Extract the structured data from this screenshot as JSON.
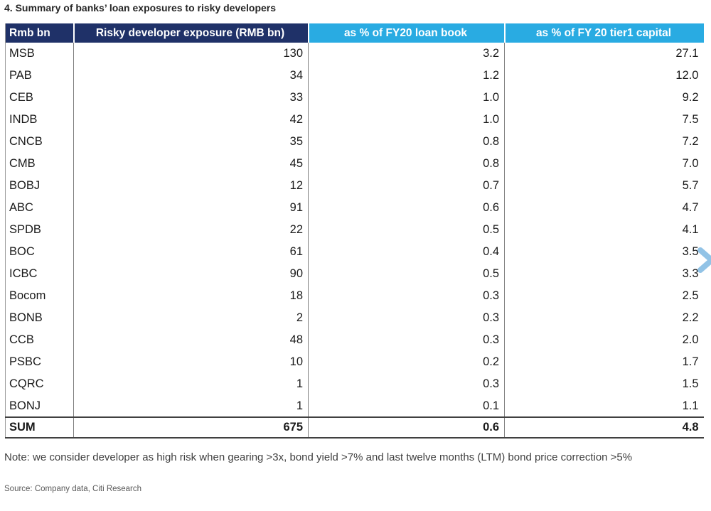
{
  "title": "4. Summary of banks’ loan exposures to risky developers",
  "chart_data": {
    "type": "table",
    "columns": [
      "Rmb bn",
      "Risky developer exposure (RMB bn)",
      "as % of FY20 loan book",
      "as % of FY 20 tier1 capital"
    ],
    "rows": [
      {
        "name": "MSB",
        "exposure": "130",
        "pct_loan_book": "3.2",
        "pct_tier1": "27.1"
      },
      {
        "name": "PAB",
        "exposure": "34",
        "pct_loan_book": "1.2",
        "pct_tier1": "12.0"
      },
      {
        "name": "CEB",
        "exposure": "33",
        "pct_loan_book": "1.0",
        "pct_tier1": "9.2"
      },
      {
        "name": "INDB",
        "exposure": "42",
        "pct_loan_book": "1.0",
        "pct_tier1": "7.5"
      },
      {
        "name": "CNCB",
        "exposure": "35",
        "pct_loan_book": "0.8",
        "pct_tier1": "7.2"
      },
      {
        "name": "CMB",
        "exposure": "45",
        "pct_loan_book": "0.8",
        "pct_tier1": "7.0"
      },
      {
        "name": "BOBJ",
        "exposure": "12",
        "pct_loan_book": "0.7",
        "pct_tier1": "5.7"
      },
      {
        "name": "ABC",
        "exposure": "91",
        "pct_loan_book": "0.6",
        "pct_tier1": "4.7"
      },
      {
        "name": "SPDB",
        "exposure": "22",
        "pct_loan_book": "0.5",
        "pct_tier1": "4.1"
      },
      {
        "name": "BOC",
        "exposure": "61",
        "pct_loan_book": "0.4",
        "pct_tier1": "3.5"
      },
      {
        "name": "ICBC",
        "exposure": "90",
        "pct_loan_book": "0.5",
        "pct_tier1": "3.3"
      },
      {
        "name": "Bocom",
        "exposure": "18",
        "pct_loan_book": "0.3",
        "pct_tier1": "2.5"
      },
      {
        "name": "BONB",
        "exposure": "2",
        "pct_loan_book": "0.3",
        "pct_tier1": "2.2"
      },
      {
        "name": "CCB",
        "exposure": "48",
        "pct_loan_book": "0.3",
        "pct_tier1": "2.0"
      },
      {
        "name": "PSBC",
        "exposure": "10",
        "pct_loan_book": "0.2",
        "pct_tier1": "1.7"
      },
      {
        "name": "CQRC",
        "exposure": "1",
        "pct_loan_book": "0.3",
        "pct_tier1": "1.5"
      },
      {
        "name": "BONJ",
        "exposure": "1",
        "pct_loan_book": "0.1",
        "pct_tier1": "1.1"
      }
    ],
    "sum": {
      "name": "SUM",
      "exposure": "675",
      "pct_loan_book": "0.6",
      "pct_tier1": "4.8"
    }
  },
  "note": "Note: we consider developer as high risk when gearing >3x, bond yield >7% and last twelve months (LTM) bond price correction >5%",
  "source": "Source: Company data, Citi Research",
  "colors": {
    "header_navy": "#1f3168",
    "header_cyan": "#29abe2",
    "grid_line": "#7f7f7f",
    "strong_border": "#404040",
    "arrow_blue": "#92c3e6"
  },
  "icons": {
    "next_arrow": "chevron-right"
  }
}
